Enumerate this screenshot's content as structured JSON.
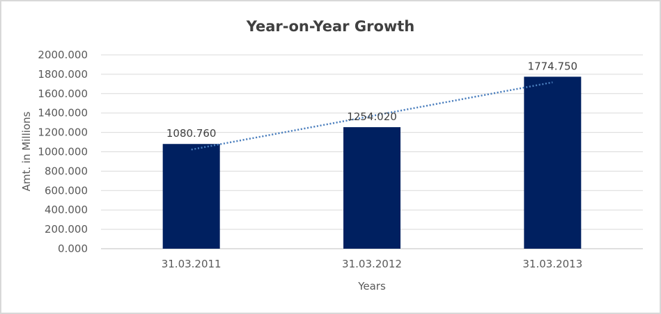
{
  "chart_data": {
    "type": "bar",
    "title": "Year-on-Year Growth",
    "xlabel": "Years",
    "ylabel": "Amt. in Millions",
    "categories": [
      "31.03.2011",
      "31.03.2012",
      "31.03.2013"
    ],
    "values": [
      1080.76,
      1254.02,
      1774.75
    ],
    "data_labels": [
      "1080.760",
      "1254.020",
      "1774.750"
    ],
    "ytick_labels": [
      "0.000",
      "200.000",
      "400.000",
      "600.000",
      "800.000",
      "1000.000",
      "1200.000",
      "1400.000",
      "1600.000",
      "1800.000",
      "2000.000"
    ],
    "ytick_step": 200,
    "ylim": [
      0,
      2000
    ],
    "grid": true,
    "legend": "none",
    "trendline": {
      "type": "linear",
      "style": "dotted"
    },
    "colors": {
      "bar": "#002060",
      "trendline": "#4a7ebd",
      "gridline": "#d9d9d9",
      "axis_line": "#bfbfbf",
      "title_text": "#404040",
      "tick_text": "#595959",
      "data_label_text": "#404040",
      "background": "#ffffff",
      "frame_border": "#d8d8d8"
    }
  }
}
